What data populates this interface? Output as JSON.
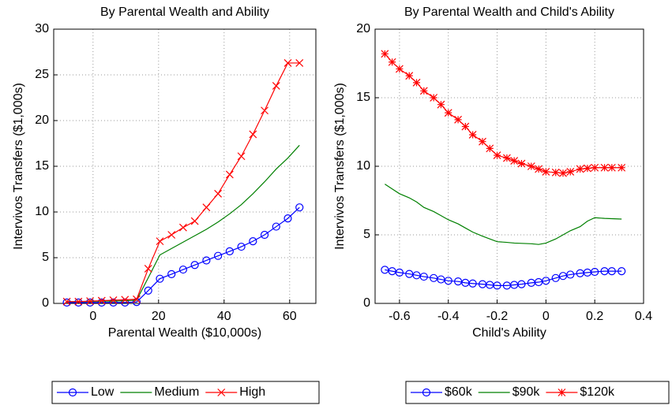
{
  "chart_data": [
    {
      "type": "line",
      "title": "By Parental Wealth and Ability",
      "xlabel": "Parental Wealth ($10,000s)",
      "ylabel": "Intervivos Transfers ($1,000s)",
      "xlim": [
        -12,
        68
      ],
      "xticks": [
        0,
        20,
        40,
        60
      ],
      "ylim": [
        0,
        30
      ],
      "yticks": [
        0,
        5,
        10,
        15,
        20,
        25,
        30
      ],
      "grid": true,
      "legend": "below",
      "x": [
        -8,
        -4.45,
        -0.9,
        2.65,
        6.2,
        9.75,
        13.3,
        16.85,
        20.4,
        23.95,
        27.5,
        31.05,
        34.6,
        38.15,
        41.7,
        45.25,
        48.8,
        52.35,
        55.9,
        59.45,
        63
      ],
      "series": [
        {
          "name": "Low",
          "color": "#0000ff",
          "marker": "o",
          "values": [
            0.1,
            0.1,
            0.1,
            0.1,
            0.1,
            0.1,
            0.15,
            1.4,
            2.7,
            3.2,
            3.7,
            4.2,
            4.7,
            5.2,
            5.7,
            6.2,
            6.8,
            7.5,
            8.4,
            9.3,
            10.5
          ]
        },
        {
          "name": "Medium",
          "color": "#008000",
          "marker": null,
          "values": [
            0.2,
            0.2,
            0.2,
            0.25,
            0.25,
            0.3,
            0.35,
            2.8,
            5.3,
            6.0,
            6.7,
            7.4,
            8.1,
            8.9,
            9.8,
            10.8,
            12.0,
            13.3,
            14.7,
            15.9,
            17.3
          ]
        },
        {
          "name": "High",
          "color": "#ff0000",
          "marker": "x",
          "values": [
            0.2,
            0.2,
            0.25,
            0.3,
            0.35,
            0.4,
            0.45,
            3.8,
            6.8,
            7.5,
            8.3,
            9.0,
            10.5,
            12.0,
            14.1,
            16.1,
            18.5,
            21.1,
            23.8,
            26.3,
            26.3
          ]
        }
      ]
    },
    {
      "type": "line",
      "title": "By Parental Wealth and Child's Ability",
      "xlabel": "Child's Ability",
      "ylabel": "Intervivos Transfers ($1,000s)",
      "xlim": [
        -0.7,
        0.4
      ],
      "xticks": [
        -0.6,
        -0.4,
        -0.2,
        0,
        0.2,
        0.4
      ],
      "ylim": [
        0,
        20
      ],
      "yticks": [
        0,
        5,
        10,
        15,
        20
      ],
      "grid": true,
      "legend": "below",
      "x": [
        -0.66,
        -0.63,
        -0.6,
        -0.56,
        -0.53,
        -0.5,
        -0.46,
        -0.43,
        -0.4,
        -0.36,
        -0.33,
        -0.3,
        -0.26,
        -0.23,
        -0.2,
        -0.16,
        -0.13,
        -0.1,
        -0.06,
        -0.03,
        0,
        0.04,
        0.07,
        0.1,
        0.14,
        0.17,
        0.2,
        0.24,
        0.27,
        0.31
      ],
      "series": [
        {
          "name": "$60k",
          "color": "#0000ff",
          "marker": "o",
          "values": [
            2.45,
            2.35,
            2.25,
            2.15,
            2.05,
            1.95,
            1.85,
            1.75,
            1.65,
            1.6,
            1.5,
            1.45,
            1.4,
            1.35,
            1.3,
            1.3,
            1.35,
            1.4,
            1.5,
            1.55,
            1.65,
            1.85,
            2.0,
            2.1,
            2.2,
            2.25,
            2.3,
            2.35,
            2.35,
            2.35
          ]
        },
        {
          "name": "$90k",
          "color": "#008000",
          "marker": null,
          "values": [
            8.7,
            8.35,
            8.0,
            7.7,
            7.4,
            7.0,
            6.7,
            6.4,
            6.1,
            5.8,
            5.5,
            5.2,
            4.9,
            4.7,
            4.5,
            4.45,
            4.4,
            4.38,
            4.35,
            4.3,
            4.4,
            4.7,
            5.0,
            5.3,
            5.6,
            6.0,
            6.25,
            6.2,
            6.18,
            6.15
          ]
        },
        {
          "name": "$120k",
          "color": "#ff0000",
          "marker": "*",
          "values": [
            18.2,
            17.6,
            17.1,
            16.6,
            16.1,
            15.5,
            15.0,
            14.5,
            13.9,
            13.4,
            12.9,
            12.3,
            11.8,
            11.3,
            10.8,
            10.6,
            10.4,
            10.2,
            10.0,
            9.8,
            9.6,
            9.55,
            9.5,
            9.6,
            9.8,
            9.85,
            9.9,
            9.9,
            9.9,
            9.9
          ]
        }
      ]
    }
  ]
}
